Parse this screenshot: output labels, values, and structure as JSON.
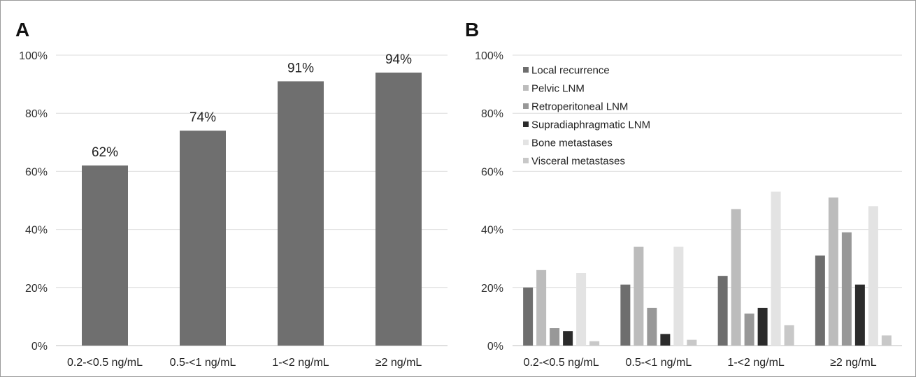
{
  "chart_data": [
    {
      "panel": "A",
      "type": "bar",
      "categories": [
        "0.2-<0.5 ng/mL",
        "0.5-<1 ng/mL",
        "1-<2 ng/mL",
        "≥2 ng/mL"
      ],
      "values": [
        62,
        74,
        91,
        94
      ],
      "data_labels": [
        "62%",
        "74%",
        "91%",
        "94%"
      ],
      "ylim": [
        0,
        100
      ],
      "yticks": [
        "0%",
        "20%",
        "40%",
        "60%",
        "80%",
        "100%"
      ],
      "grid": true,
      "bar_color": "#6f6f6f"
    },
    {
      "panel": "B",
      "type": "bar",
      "categories": [
        "0.2-<0.5 ng/mL",
        "0.5-<1 ng/mL",
        "1-<2 ng/mL",
        "≥2 ng/mL"
      ],
      "series": [
        {
          "name": "Local recurrence",
          "color": "#6e6e6e",
          "values": [
            20,
            21,
            24,
            31
          ]
        },
        {
          "name": "Pelvic LNM",
          "color": "#bcbcbc",
          "values": [
            26,
            34,
            47,
            51
          ]
        },
        {
          "name": "Retroperitoneal LNM",
          "color": "#989898",
          "values": [
            6,
            13,
            11,
            39
          ]
        },
        {
          "name": "Supradiaphragmatic LNM",
          "color": "#2b2b2b",
          "values": [
            5,
            4,
            13,
            21
          ]
        },
        {
          "name": "Bone metastases",
          "color": "#e3e3e3",
          "values": [
            25,
            34,
            53,
            48
          ]
        },
        {
          "name": "Visceral metastases",
          "color": "#c8c8c8",
          "values": [
            1.5,
            2,
            7,
            3.5
          ]
        }
      ],
      "ylim": [
        0,
        100
      ],
      "yticks": [
        "0%",
        "20%",
        "40%",
        "60%",
        "80%",
        "100%"
      ],
      "grid": true,
      "legend_position": "top-left"
    }
  ]
}
